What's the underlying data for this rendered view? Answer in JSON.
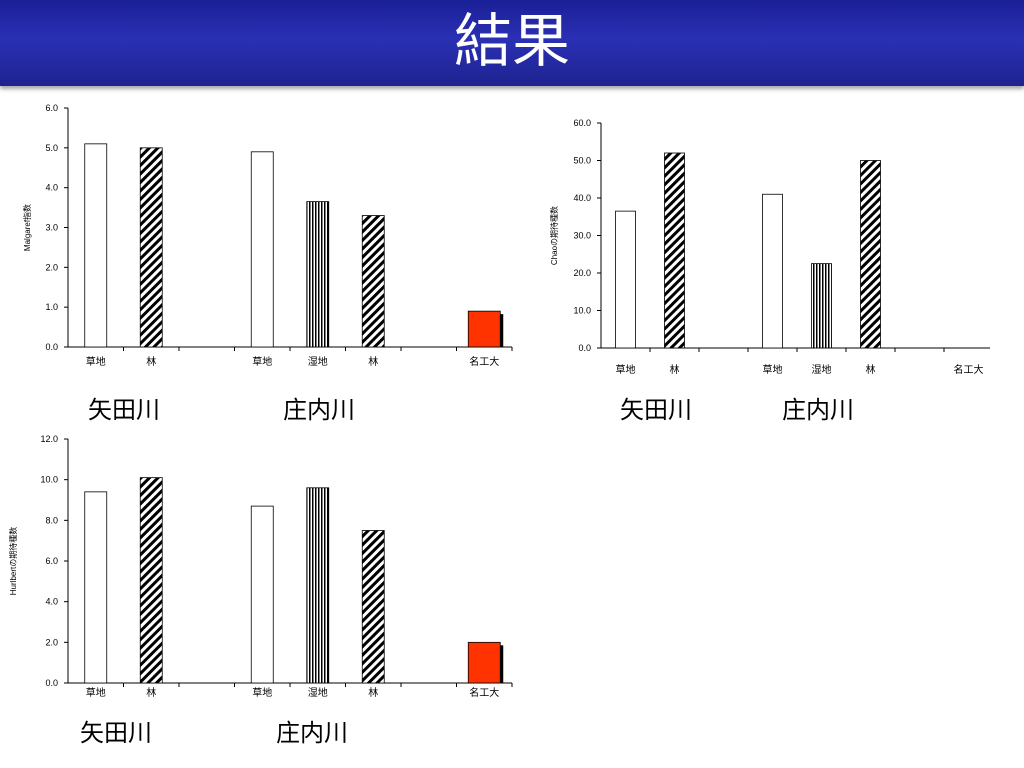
{
  "slide": {
    "title": "結果"
  },
  "charts": [
    {
      "id": "margalef",
      "river_labels": [
        "矢田川",
        "庄内川"
      ],
      "chart_data": {
        "type": "bar",
        "ylabel": "Malgaref指数",
        "ylim": [
          0,
          6
        ],
        "ytick_step": 1,
        "ytick_decimals": 1,
        "categories": [
          "草地",
          "林",
          "",
          "草地",
          "湿地",
          "林",
          "",
          "名工大"
        ],
        "values": [
          5.1,
          5.0,
          null,
          4.9,
          3.65,
          3.3,
          null,
          0.9
        ],
        "patterns": [
          "white",
          "diag",
          "none",
          "white",
          "vert",
          "diag",
          "none",
          "red"
        ]
      }
    },
    {
      "id": "chao",
      "river_labels": [
        "矢田川",
        "庄内川"
      ],
      "chart_data": {
        "type": "bar",
        "ylabel": "Chaoの期待種数",
        "ylim": [
          0,
          60
        ],
        "ytick_step": 10,
        "ytick_decimals": 1,
        "categories": [
          "草地",
          "林",
          "",
          "草地",
          "湿地",
          "林",
          "",
          "名工大"
        ],
        "values": [
          36.5,
          52.0,
          null,
          41.0,
          22.5,
          50.0,
          null,
          null
        ],
        "patterns": [
          "white",
          "diag",
          "none",
          "white",
          "vert",
          "diag",
          "none",
          "none"
        ]
      }
    },
    {
      "id": "hurlbert",
      "river_labels": [
        "矢田川",
        "庄内川"
      ],
      "chart_data": {
        "type": "bar",
        "ylabel": "Hurlbertの期待種数",
        "ylim": [
          0,
          12
        ],
        "ytick_step": 2,
        "ytick_decimals": 1,
        "categories": [
          "草地",
          "林",
          "",
          "草地",
          "湿地",
          "林",
          "",
          "名工大"
        ],
        "values": [
          9.4,
          10.1,
          null,
          8.7,
          9.6,
          7.5,
          null,
          2.0
        ],
        "patterns": [
          "white",
          "diag",
          "none",
          "white",
          "vert",
          "diag",
          "none",
          "red"
        ]
      }
    }
  ],
  "colors": {
    "title_bg": "#2329a8",
    "title_text": "#ffffff",
    "red_bar": "#ff3300",
    "axis": "#000000"
  }
}
